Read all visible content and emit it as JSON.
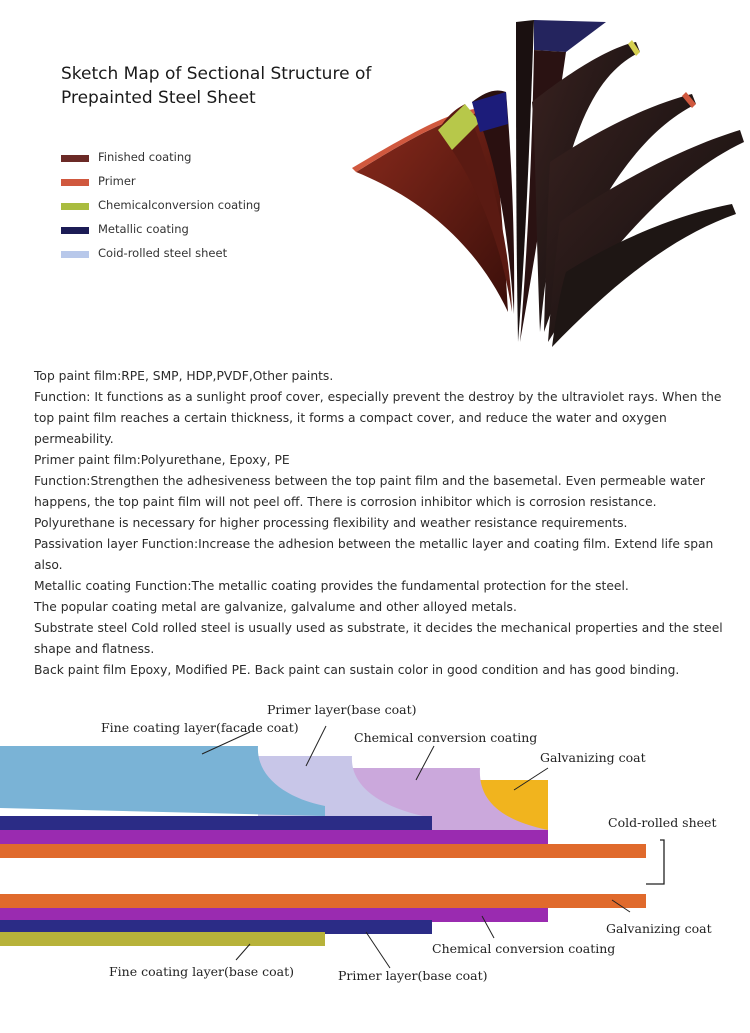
{
  "title": {
    "line1": "Sketch Map of Sectional Structure of",
    "line2": "Prepainted Steel Sheet"
  },
  "legend": [
    {
      "label": "Finished coating",
      "color": "#6b2a26"
    },
    {
      "label": "Primer",
      "color": "#d0583e"
    },
    {
      "label": "Chemicalconversion coating",
      "color": "#a9bc3f"
    },
    {
      "label": "Metallic coating",
      "color": "#1c1c55"
    },
    {
      "label": "Coid-rolled steel sheet",
      "color": "#b8c8ea"
    }
  ],
  "description": [
    "Top paint film:RPE, SMP, HDP,PVDF,Other paints.",
    "Function: It functions as a sunlight proof cover, especially prevent the destroy by the ultraviolet rays. When the top paint film reaches a certain thickness, it forms a compact cover, and reduce the water and oxygen permeability.",
    "Primer paint film:Polyurethane, Epoxy, PE",
    "Function:Strengthen the adhesiveness between the top paint film and the basemetal. Even permeable water happens, the top paint film will not peel off. There is corrosion inhibitor which is corrosion resistance. Polyurethane is necessary for higher processing flexibility and weather resistance requirements.",
    "Passivation layer Function:Increase the adhesion between the metallic layer and coating film. Extend life span also.",
    "Metallic coating Function:The metallic coating provides the fundamental protection for the steel.",
    "The popular coating metal are galvanize, galvalume and other alloyed metals.",
    "Substrate steel  Cold rolled steel is usually used as substrate, it decides the mechanical properties and the steel shape and flatness.",
    "Back paint film Epoxy, Modified PE. Back paint can sustain color in good condition and has good binding."
  ],
  "layer_labels": {
    "top_fine": "Fine coating layer(facade coat)",
    "top_primer": "Primer layer(base coat)",
    "top_chemical": "Chemical conversion coating",
    "top_galvanizing": "Galvanizing coat",
    "cold_rolled": "Cold-rolled sheet",
    "bottom_galvanizing": "Galvanizing coat",
    "bottom_chemical": "Chemical conversion coating",
    "bottom_primer": "Primer layer(base coat)",
    "bottom_fine": "Fine coating layer(base coat)"
  },
  "layer_colors": {
    "fine_top": "#7ab3d6",
    "primer_top": "#c8c6e8",
    "chemical_top": "#cba8dc",
    "galvanizing": "#f1b41e",
    "steel": "#e06a2c",
    "purple": "#9a2bb0",
    "navy": "#2b2c86",
    "olive": "#b7b23a"
  }
}
